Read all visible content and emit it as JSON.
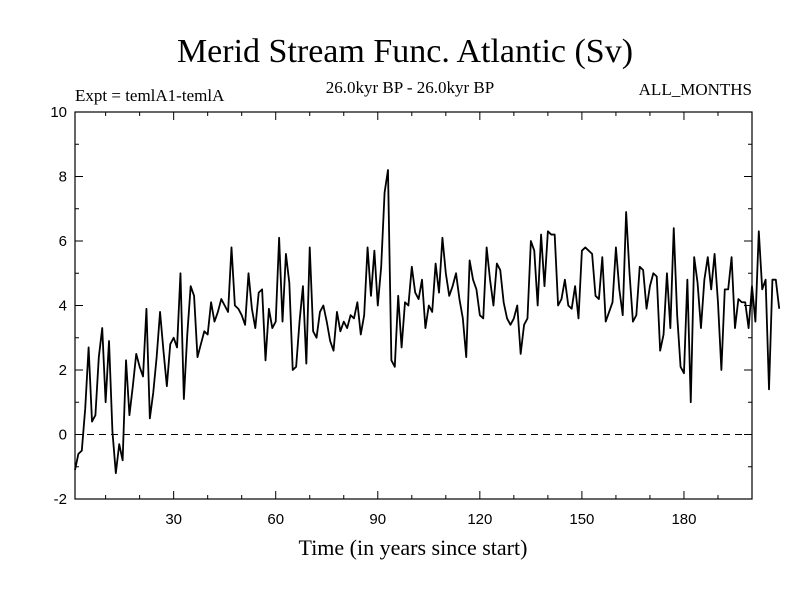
{
  "chart_data": {
    "type": "line",
    "title": "Merid Stream Func. Atlantic (Sv)",
    "subtitle_left": "Expt = temlA1-temlA",
    "subtitle_center": "26.0kyr BP - 26.0kyr BP",
    "subtitle_right": "ALL_MONTHS",
    "xlabel": "Time (in years since start)",
    "ylabel": "",
    "xlim": [
      1,
      200
    ],
    "ylim": [
      -2,
      10
    ],
    "xticks": [
      30,
      60,
      90,
      120,
      150,
      180
    ],
    "yticks": [
      -2,
      0,
      2,
      4,
      6,
      8,
      10
    ],
    "reference_line": {
      "y": 0,
      "style": "dashed"
    },
    "grid": false,
    "series": [
      {
        "name": "Merid Stream Func. Atlantic",
        "x_start": 1,
        "x_step": 1,
        "values": [
          -1.1,
          -0.6,
          -0.5,
          0.8,
          2.7,
          0.4,
          0.6,
          2.4,
          3.3,
          1.0,
          2.9,
          0.1,
          -1.2,
          -0.3,
          -0.8,
          2.3,
          0.6,
          1.5,
          2.5,
          2.1,
          1.8,
          3.9,
          0.5,
          1.3,
          2.4,
          3.8,
          2.6,
          1.5,
          2.8,
          3.0,
          2.7,
          5.0,
          1.1,
          3.1,
          4.6,
          4.3,
          2.4,
          2.8,
          3.2,
          3.1,
          4.1,
          3.5,
          3.8,
          4.2,
          4.0,
          3.8,
          5.8,
          4.0,
          3.9,
          3.7,
          3.4,
          5.0,
          3.9,
          3.3,
          4.4,
          4.5,
          2.3,
          3.9,
          3.3,
          3.5,
          6.1,
          3.5,
          5.6,
          4.7,
          2.0,
          2.1,
          3.5,
          4.6,
          2.2,
          5.8,
          3.2,
          3.0,
          3.8,
          4.0,
          3.5,
          2.9,
          2.6,
          3.8,
          3.2,
          3.5,
          3.3,
          3.7,
          3.6,
          4.1,
          3.1,
          3.7,
          5.8,
          4.3,
          5.7,
          4.0,
          5.2,
          7.5,
          8.2,
          2.3,
          2.1,
          4.3,
          2.7,
          4.1,
          4.0,
          5.2,
          4.4,
          4.2,
          4.8,
          3.3,
          4.0,
          3.8,
          5.3,
          4.4,
          6.1,
          5.0,
          4.3,
          4.6,
          5.0,
          4.2,
          3.6,
          2.4,
          5.4,
          4.8,
          4.5,
          3.7,
          3.6,
          5.8,
          4.8,
          4.0,
          5.3,
          5.1,
          4.1,
          3.6,
          3.4,
          3.6,
          4.0,
          2.5,
          3.4,
          3.6,
          6.0,
          5.7,
          4.0,
          6.2,
          4.6,
          6.3,
          6.2,
          6.2,
          4.0,
          4.2,
          4.8,
          4.0,
          3.9,
          4.6,
          3.6,
          5.7,
          5.8,
          5.7,
          5.6,
          4.3,
          4.2,
          5.5,
          3.5,
          3.8,
          4.1,
          5.8,
          4.5,
          3.7,
          6.9,
          5.0,
          3.5,
          3.7,
          5.2,
          5.1,
          3.9,
          4.6,
          5.0,
          4.9,
          2.6,
          3.1,
          5.0,
          3.3,
          6.4,
          3.7,
          2.1,
          1.9,
          4.8,
          1.0,
          5.5,
          4.7,
          3.3,
          4.8,
          5.5,
          4.5,
          5.6,
          4.1,
          2.0,
          4.5,
          4.5,
          5.5,
          3.3,
          4.2,
          4.1,
          4.1,
          3.3,
          4.6,
          3.5,
          6.3,
          4.5,
          4.8,
          1.4,
          4.8,
          4.8,
          3.9
        ]
      }
    ]
  }
}
